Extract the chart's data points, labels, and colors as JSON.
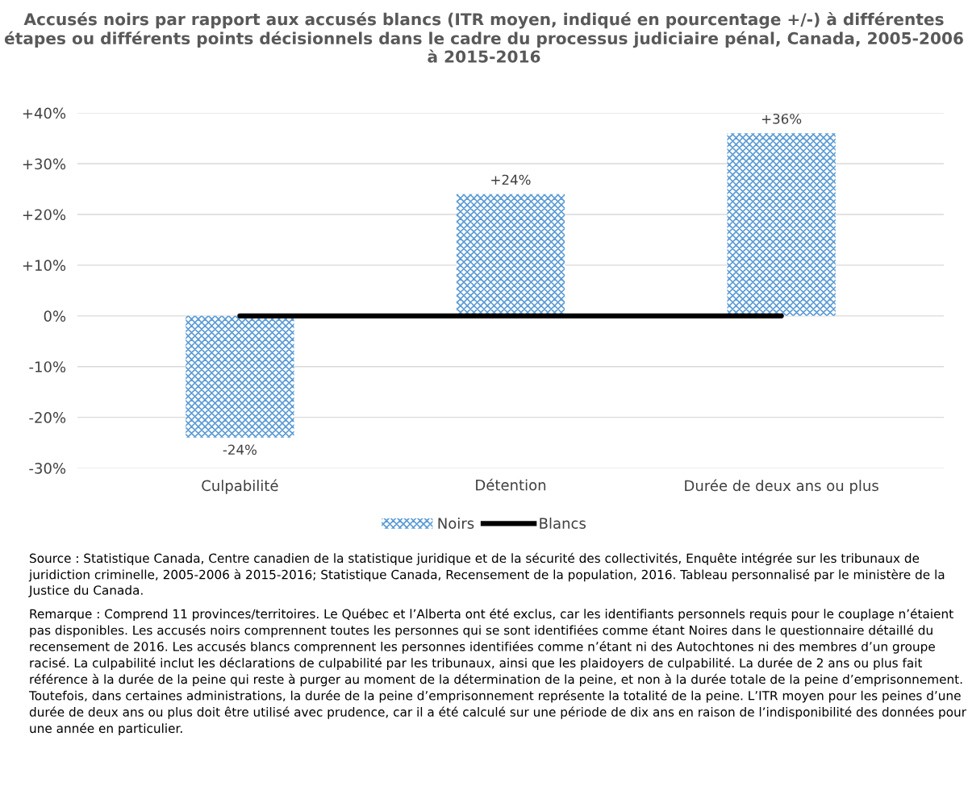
{
  "chart_data": {
    "type": "bar",
    "title": "Accusés noirs par rapport aux accusés blancs (ITR moyen, indiqué en pourcentage +/-) à différentes étapes ou différents points décisionnels dans le cadre du processus judiciaire pénal, Canada, 2005-2006 à 2015-2016",
    "categories": [
      "Culpabilité",
      "Détention",
      "Durée de deux ans ou plus"
    ],
    "series": [
      {
        "name": "Noirs",
        "color": "#5b9bd5",
        "values": [
          -24,
          24,
          36
        ],
        "value_labels": [
          "-24%",
          "+24%",
          "+36%"
        ]
      },
      {
        "name": "Blancs",
        "type": "line",
        "color": "#000000",
        "values": [
          0,
          0,
          0
        ]
      }
    ],
    "ylim": [
      -30,
      40
    ],
    "yticks": [
      {
        "value": -30,
        "label": "-30%"
      },
      {
        "value": -20,
        "label": "-20%"
      },
      {
        "value": -10,
        "label": "-10%"
      },
      {
        "value": 0,
        "label": "0%"
      },
      {
        "value": 10,
        "label": "+10%"
      },
      {
        "value": 20,
        "label": "+20%"
      },
      {
        "value": 30,
        "label": "+30%"
      },
      {
        "value": 40,
        "label": "+40%"
      }
    ],
    "grid": "y",
    "legend": "bottom",
    "annotations": [
      "Source : Statistique Canada, Centre canadien de la statistique juridique et de la sécurité des collectivités, Enquête intégrée sur les tribunaux de juridiction criminelle, 2005-2006 à 2015-2016; Statistique Canada, Recensement de la population, 2016. Tableau personnalisé par le ministère de la Justice du Canada.",
      "Remarque : Comprend 11 provinces/territoires. Le Québec et l’Alberta ont été exclus, car les identifiants personnels requis pour le couplage n’étaient pas disponibles. Les accusés noirs comprennent toutes les personnes qui se sont identifiées comme étant Noires dans le questionnaire détaillé du recensement de 2016. Les accusés blancs comprennent les personnes identifiées comme n’étant ni des Autochtones ni des membres d’un groupe racisé. La culpabilité inclut les déclarations de culpabilité par les tribunaux, ainsi que les plaidoyers de culpabilité. La durée de 2 ans ou plus fait référence à la durée de la peine qui reste à purger au moment de la détermination de la peine, et non à la durée totale de la peine d’emprisonnement. Toutefois, dans certaines administrations, la durée de la peine d’emprisonnement représente la totalité de la peine. L’ITR moyen pour les peines d’une durée de deux ans ou plus doit être utilisé avec prudence, car il a été calculé sur une période de dix ans en raison de l’indisponibilité des données pour une année en particulier."
    ]
  }
}
